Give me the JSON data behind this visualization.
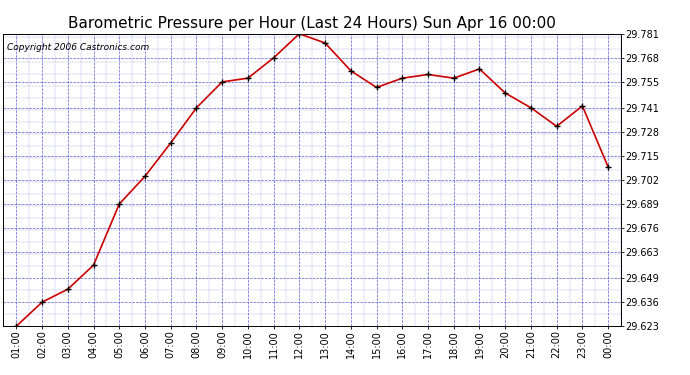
{
  "title": "Barometric Pressure per Hour (Last 24 Hours) Sun Apr 16 00:00",
  "copyright": "Copyright 2006 Castronics.com",
  "x_labels": [
    "01:00",
    "02:00",
    "03:00",
    "04:00",
    "05:00",
    "06:00",
    "07:00",
    "08:00",
    "09:00",
    "10:00",
    "11:00",
    "12:00",
    "13:00",
    "14:00",
    "15:00",
    "16:00",
    "17:00",
    "18:00",
    "19:00",
    "20:00",
    "21:00",
    "22:00",
    "23:00",
    "00:00"
  ],
  "y_values": [
    29.623,
    29.636,
    29.643,
    29.656,
    29.689,
    29.704,
    29.722,
    29.741,
    29.755,
    29.757,
    29.768,
    29.781,
    29.776,
    29.761,
    29.752,
    29.757,
    29.759,
    29.757,
    29.762,
    29.749,
    29.741,
    29.731,
    29.742,
    29.709
  ],
  "ylim_min": 29.623,
  "ylim_max": 29.781,
  "y_ticks": [
    29.623,
    29.636,
    29.649,
    29.663,
    29.676,
    29.689,
    29.702,
    29.715,
    29.728,
    29.741,
    29.755,
    29.768,
    29.781
  ],
  "line_color": "#cc0000",
  "marker_color": "#000000",
  "bg_color": "#ffffff",
  "plot_bg_color": "#ffffff",
  "grid_color": "#3333cc",
  "title_fontsize": 11,
  "copyright_fontsize": 6.5,
  "tick_fontsize": 7,
  "ytick_fontsize": 7
}
